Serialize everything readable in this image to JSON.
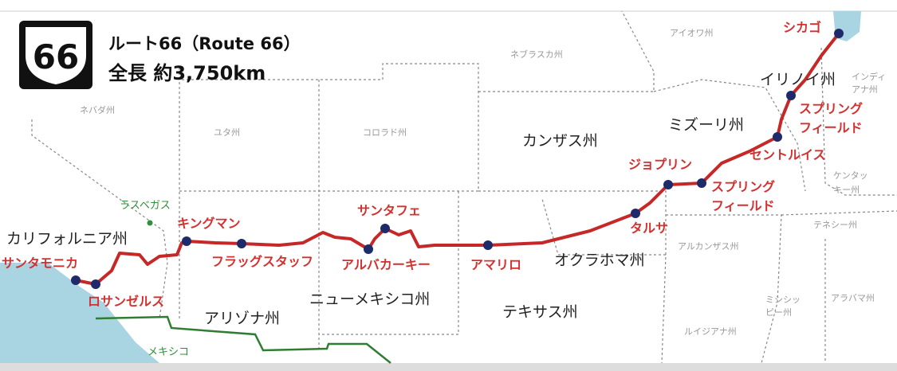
{
  "header": {
    "shield": "66",
    "title": "ルート66（Route 66）",
    "length": "全長 約3,750km"
  },
  "states_major": [
    "カンザス州",
    "ミズーリ州",
    "イリノイ州",
    "オクラホマ州",
    "カリフォルニア州",
    "アリゾナ州",
    "ニューメキシコ州",
    "テキサス州"
  ],
  "states_minor": [
    "ネバダ州",
    "ユタ州",
    "コロラド州",
    "ネブラスカ州",
    "アイオワ州",
    [
      "インディ",
      "アナ州"
    ],
    [
      "ケンタッ",
      "キー州"
    ],
    "テネシー州",
    "アルカンザス州",
    [
      "ミシシッ",
      "ピー州"
    ],
    "アラバマ州",
    "ルイジアナ州"
  ],
  "cities": [
    "シカゴ",
    [
      "スプリング",
      "フィールド"
    ],
    "セントルイス",
    "ジョプリン",
    [
      "スプリング",
      "フィールド"
    ],
    "タルサ",
    "アマリロ",
    "アルバカーキー",
    "サンタフェ",
    "フラッグスタッフ",
    "キングマン",
    "ロサンゼルス",
    "サンタモニカ"
  ],
  "other": [
    "ラスベガス",
    "メキシコ"
  ]
}
